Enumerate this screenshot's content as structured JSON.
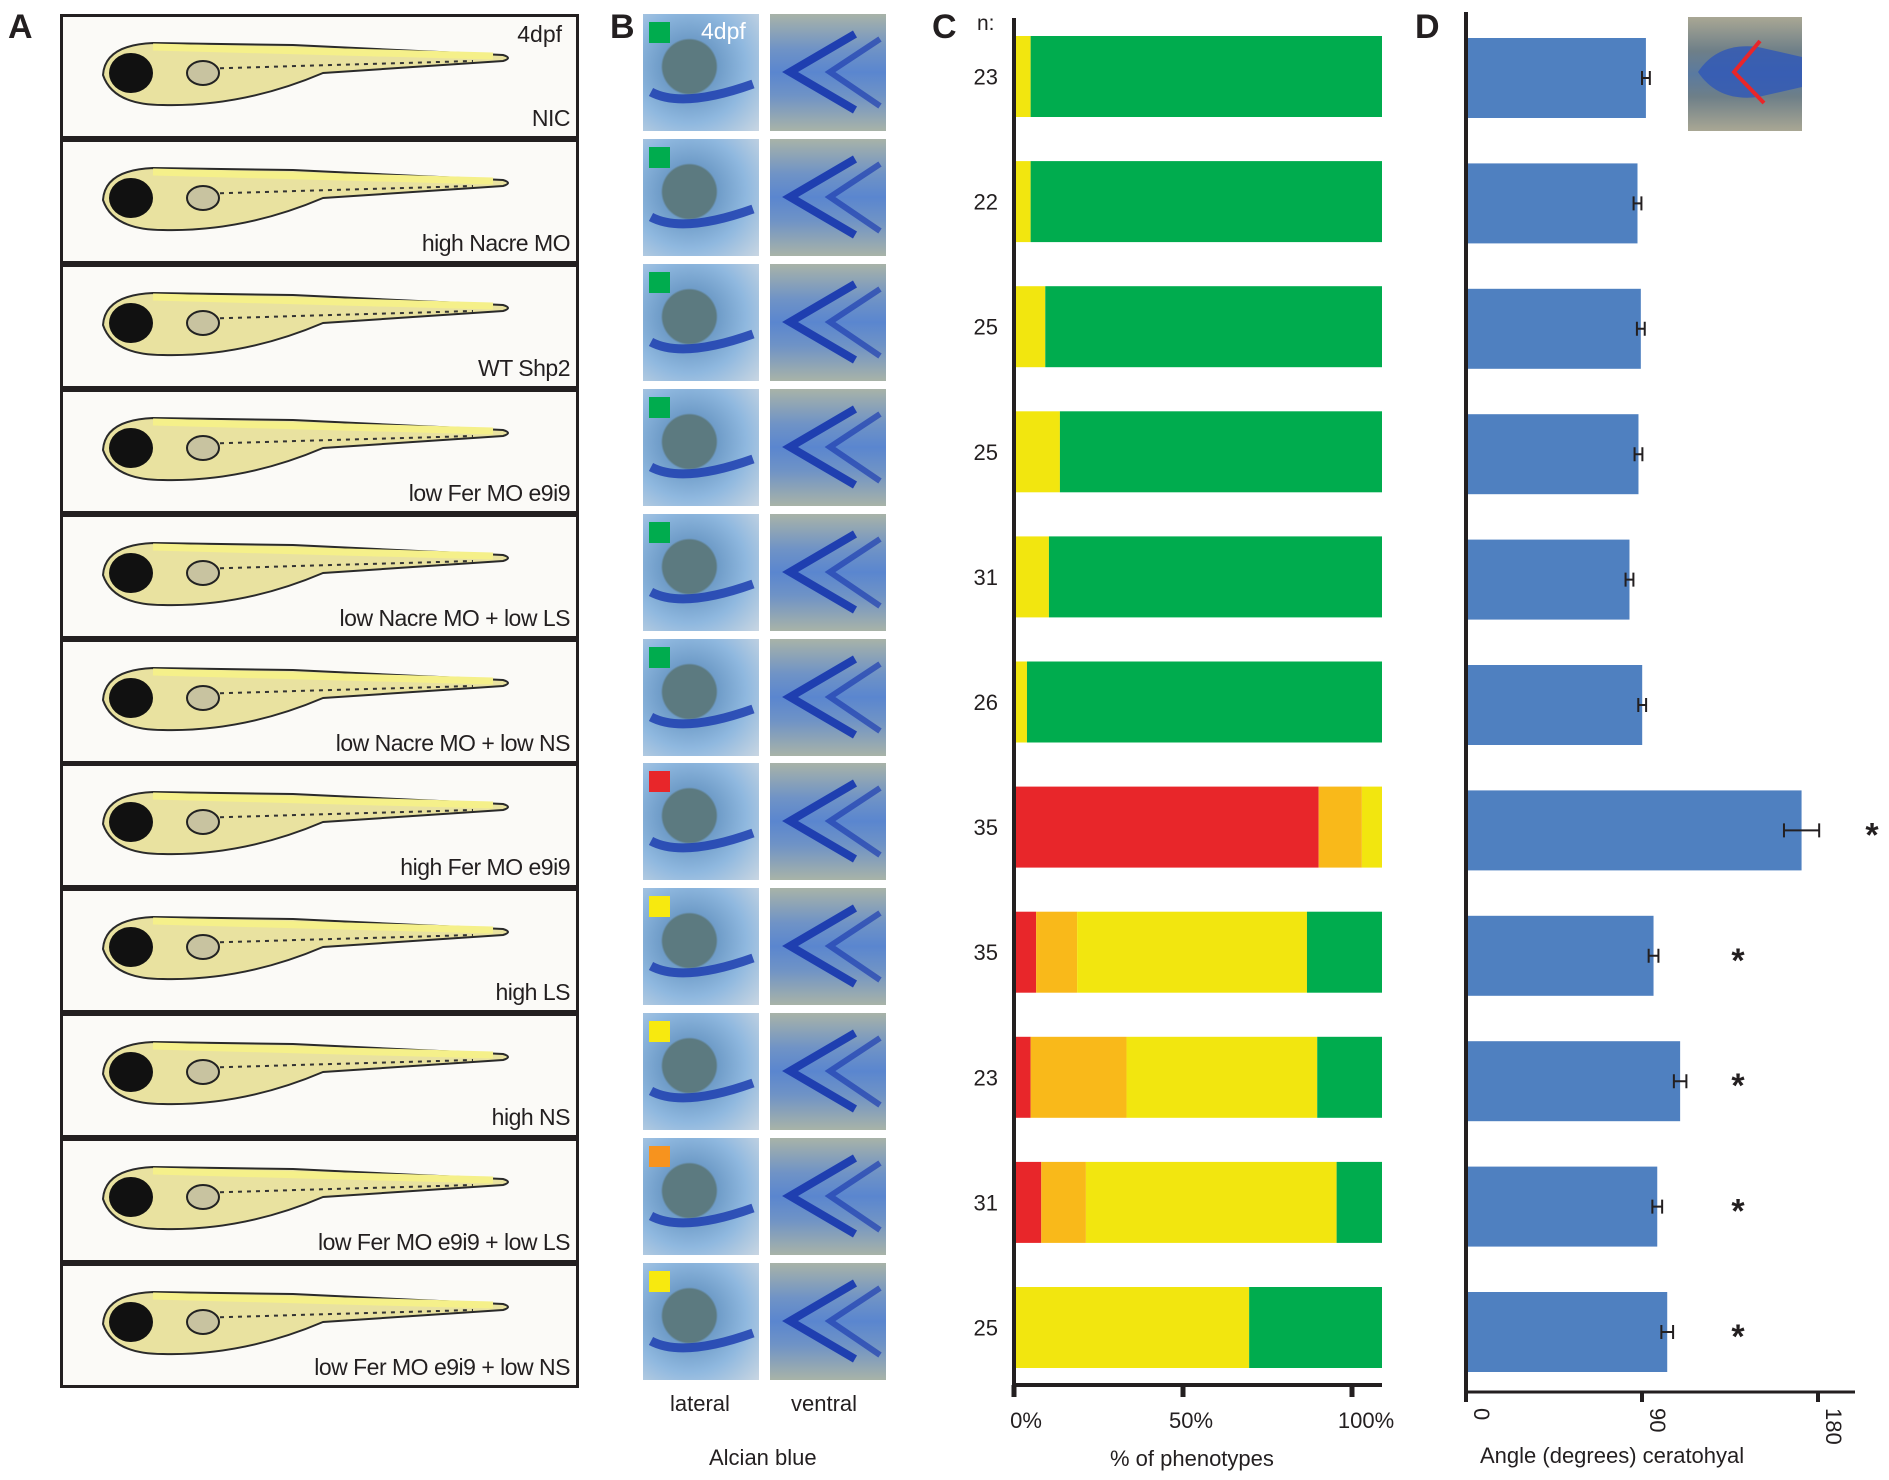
{
  "panels": {
    "a": "A",
    "b": "B",
    "c": "C",
    "d": "D"
  },
  "panel_a": {
    "stage_label": "4dpf",
    "conditions": [
      "NIC",
      "high Nacre MO",
      "WT Shp2",
      "low Fer MO e9i9",
      "low Nacre MO + low LS",
      "low Nacre MO + low NS",
      "high Fer MO e9i9",
      "high LS",
      "high NS",
      "low Fer MO e9i9 + low LS",
      "low Fer MO e9i9 + low NS"
    ]
  },
  "panel_b": {
    "stage_label": "4dpf",
    "phenotype_colors": [
      "#00ac4e",
      "#00ac4e",
      "#00ac4e",
      "#00ac4e",
      "#00ac4e",
      "#00ac4e",
      "#e8262a",
      "#f7e90f",
      "#f7e90f",
      "#f7931e",
      "#f7e90f"
    ],
    "view_labels": {
      "lateral": "lateral",
      "ventral": "ventral"
    },
    "stain_label": "Alcian blue"
  },
  "chart_data": [
    {
      "type": "bar",
      "orientation": "horizontal-stacked",
      "n_header": "n:",
      "categories": [
        "23",
        "22",
        "25",
        "25",
        "31",
        "26",
        "35",
        "35",
        "23",
        "31",
        "25"
      ],
      "series": [
        {
          "color": "#e8262a",
          "values": [
            0,
            0,
            0,
            0,
            0,
            0,
            82.7,
            5.5,
            4,
            6.9,
            0
          ]
        },
        {
          "color": "#f9b91a",
          "values": [
            0,
            0,
            0,
            0,
            0,
            0,
            11.8,
            11.2,
            26.2,
            12.2,
            0
          ]
        },
        {
          "color": "#f2e60f",
          "values": [
            4,
            4,
            8,
            12,
            9,
            3,
            5.5,
            62.8,
            52.1,
            68.5,
            63.7
          ]
        },
        {
          "color": "#00ac4e",
          "values": [
            96,
            96,
            92,
            88,
            91,
            97,
            0,
            20.5,
            17.7,
            12.4,
            36.3
          ]
        }
      ],
      "xticks": [
        0,
        50,
        100
      ],
      "xtick_labels": [
        "0%",
        "50%",
        "100%"
      ],
      "xlabel": "% of phenotypes",
      "xlim": [
        0,
        100
      ]
    },
    {
      "type": "bar",
      "orientation": "horizontal",
      "values": [
        92,
        87.7,
        89.4,
        88.2,
        83.6,
        90.1,
        171.6,
        95.9,
        109.5,
        97.8,
        102.9
      ],
      "errors": [
        2,
        2,
        2,
        2,
        2,
        2,
        9,
        2.5,
        3.2,
        2.5,
        3
      ],
      "significant": [
        false,
        false,
        false,
        false,
        false,
        false,
        true,
        true,
        true,
        true,
        true
      ],
      "significance_marker": "*",
      "bar_color": "#4f80c0",
      "xticks": [
        0,
        90,
        180
      ],
      "xtick_labels": [
        "0",
        "90",
        "180"
      ],
      "xlabel": "Angle (degrees) ceratohyal",
      "xlim": [
        0,
        180
      ]
    }
  ]
}
